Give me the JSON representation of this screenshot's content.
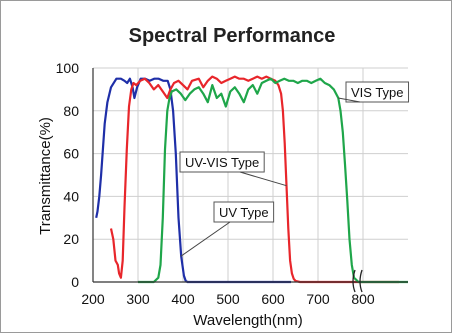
{
  "chart_data": {
    "type": "line",
    "title": "Spectral Performance",
    "xlabel": "Wavelength(nm)",
    "ylabel": "Transmittance(%)",
    "xlim": [
      200,
      900
    ],
    "ylim": [
      0,
      100
    ],
    "x_ticks": [
      200,
      300,
      400,
      500,
      600,
      700,
      800
    ],
    "y_ticks": [
      0,
      20,
      40,
      60,
      80,
      100
    ],
    "grid": true,
    "axis_break": "800",
    "series": [
      {
        "name": "UV Type",
        "color": "#1f2fa8",
        "x": [
          207,
          210,
          214,
          218,
          222,
          226,
          232,
          240,
          252,
          262,
          270,
          276,
          282,
          288,
          292,
          298,
          306,
          316,
          326,
          336,
          346,
          356,
          366,
          372,
          378,
          384,
          390,
          396,
          402,
          406,
          410,
          420,
          440,
          480,
          560,
          640
        ],
        "y": [
          30,
          33,
          40,
          50,
          62,
          74,
          84,
          91,
          95,
          95,
          94,
          93,
          95,
          91,
          86,
          91,
          95,
          95,
          94,
          95,
          95,
          94,
          94,
          90,
          80,
          60,
          30,
          12,
          3,
          0.5,
          0,
          0,
          0,
          0,
          0,
          0
        ]
      },
      {
        "name": "UV-VIS Type",
        "color": "#e8262b",
        "x": [
          240,
          245,
          250,
          255,
          258,
          262,
          266,
          270,
          275,
          280,
          285,
          290,
          296,
          305,
          315,
          325,
          335,
          345,
          355,
          365,
          372,
          380,
          390,
          400,
          410,
          420,
          435,
          445,
          455,
          465,
          475,
          485,
          495,
          505,
          515,
          525,
          535,
          545,
          555,
          565,
          575,
          585,
          595,
          605,
          612,
          618,
          622,
          626,
          630,
          634,
          638,
          642,
          646,
          650,
          660,
          680,
          720,
          760,
          800,
          840,
          880
        ],
        "y": [
          25,
          20,
          10,
          8,
          4,
          2,
          10,
          35,
          62,
          82,
          90,
          93,
          92,
          94,
          95,
          93,
          90,
          92,
          89,
          86,
          90,
          93,
          94,
          92,
          90,
          94,
          95,
          91,
          94,
          96,
          95,
          93,
          94,
          95,
          96,
          95,
          95,
          94,
          95,
          96,
          95,
          96,
          95,
          94,
          92,
          88,
          80,
          65,
          45,
          25,
          10,
          4,
          1.5,
          0.5,
          0,
          0,
          0,
          0,
          0,
          0,
          0
        ]
      },
      {
        "name": "VIS Type",
        "color": "#1fa64a",
        "x": [
          300,
          320,
          335,
          345,
          350,
          355,
          360,
          365,
          370,
          375,
          385,
          395,
          405,
          415,
          425,
          435,
          445,
          455,
          465,
          475,
          485,
          495,
          505,
          515,
          525,
          535,
          545,
          555,
          565,
          575,
          585,
          595,
          605,
          615,
          625,
          635,
          645,
          655,
          665,
          675,
          685,
          695,
          705,
          715,
          725,
          735,
          745,
          750,
          755,
          760,
          765,
          770,
          775,
          780,
          790,
          820,
          860,
          900
        ],
        "y": [
          0,
          0,
          0,
          2,
          8,
          30,
          62,
          80,
          86,
          89,
          90,
          88,
          85,
          88,
          90,
          91,
          88,
          84,
          92,
          86,
          88,
          82,
          89,
          91,
          88,
          84,
          90,
          92,
          88,
          93,
          94,
          95,
          93,
          94,
          95,
          94,
          94,
          93,
          94,
          94,
          93,
          94,
          95,
          93,
          92,
          90,
          86,
          80,
          70,
          55,
          38,
          20,
          8,
          2,
          0,
          0,
          0,
          0
        ]
      }
    ],
    "annotations": [
      {
        "text": "UV Type",
        "series": 0,
        "at_x": 395
      },
      {
        "text": "UV-VIS Type",
        "series": 1,
        "at_x": 630
      },
      {
        "text": "VIS Type",
        "series": 2,
        "at_x": 745
      }
    ]
  }
}
